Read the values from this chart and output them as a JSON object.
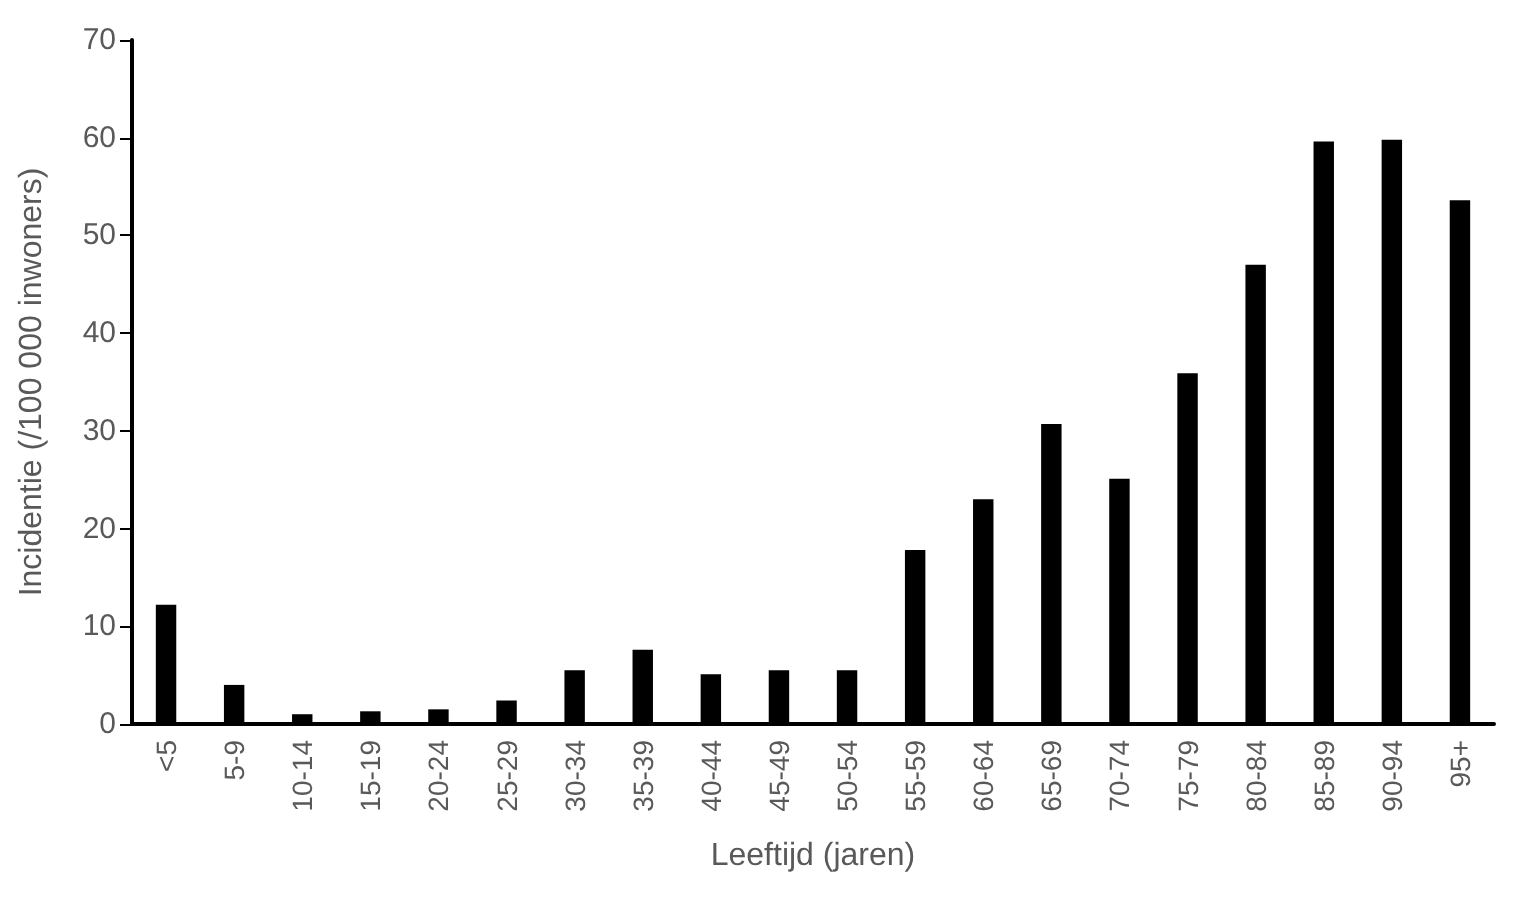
{
  "chart_data": {
    "type": "bar",
    "xlabel": "Leeftijd (jaren)",
    "ylabel": "Incidentie (/100 000 inwoners)",
    "categories": [
      "<5",
      "5-9",
      "10-14",
      "15-19",
      "20-24",
      "25-29",
      "30-34",
      "35-39",
      "40-44",
      "45-49",
      "50-54",
      "55-59",
      "60-64",
      "65-69",
      "70-74",
      "75-79",
      "80-84",
      "85-89",
      "90-94",
      "95+"
    ],
    "values": [
      12.2,
      4.0,
      1.0,
      1.3,
      1.5,
      2.4,
      5.5,
      7.6,
      5.1,
      5.5,
      5.5,
      17.8,
      23.0,
      30.7,
      25.1,
      35.9,
      47.0,
      59.6,
      59.8,
      53.6
    ],
    "color": "#000000",
    "ylim": [
      0,
      70
    ],
    "yticks": [
      0,
      10,
      20,
      30,
      40,
      50,
      60,
      70
    ],
    "grid": false
  }
}
